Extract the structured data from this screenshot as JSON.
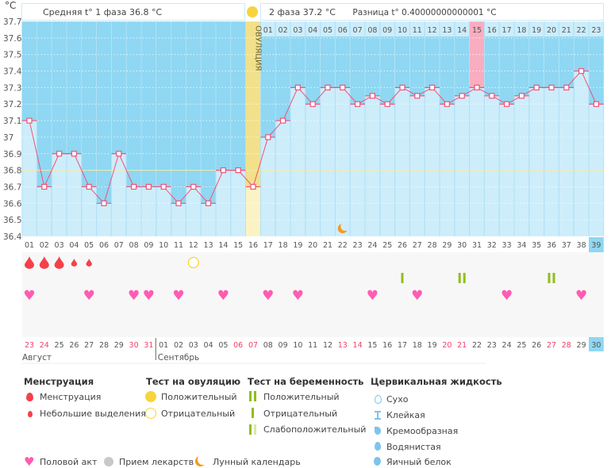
{
  "header": {
    "unit": "°C",
    "phase1_label": "Средняя t° 1 фаза 36.8 °C",
    "phase2_label": "2 фаза 37.2 °C",
    "difference_label": "Разница t° 0.40000000000001 °C",
    "ovulation_label": "ОВУЛЯЦИЯ"
  },
  "chart_data": {
    "type": "line",
    "ylabel": "°C",
    "ylim": [
      36.4,
      37.7
    ],
    "yticks": [
      "37.7",
      "37.6",
      "37.5",
      "37.4",
      "37.3",
      "37.2",
      "37.1",
      "37",
      "36.9",
      "36.8",
      "36.7",
      "36.6",
      "36.5",
      "36.4"
    ],
    "cycle_days": [
      "01",
      "02",
      "03",
      "04",
      "05",
      "06",
      "07",
      "08",
      "09",
      "10",
      "11",
      "12",
      "13",
      "14",
      "15",
      "16",
      "17",
      "18",
      "19",
      "20",
      "21",
      "22",
      "23",
      "24",
      "25",
      "26",
      "27",
      "28",
      "29",
      "30",
      "31",
      "32",
      "33",
      "34",
      "35",
      "36",
      "37",
      "38",
      "39"
    ],
    "post_ovulation_days": [
      "01",
      "02",
      "03",
      "04",
      "05",
      "06",
      "07",
      "08",
      "09",
      "10",
      "11",
      "12",
      "13",
      "14",
      "15",
      "16",
      "17",
      "18",
      "19",
      "20",
      "21",
      "22",
      "23"
    ],
    "temperatures": [
      37.1,
      36.7,
      36.9,
      36.9,
      36.7,
      36.6,
      36.9,
      36.7,
      36.7,
      36.7,
      36.6,
      36.7,
      36.6,
      36.8,
      36.8,
      36.7,
      37.0,
      37.1,
      37.3,
      37.2,
      37.3,
      37.3,
      37.2,
      37.25,
      37.2,
      37.3,
      37.25,
      37.3,
      37.2,
      37.25,
      37.3,
      37.25,
      37.2,
      37.25,
      37.3,
      37.3,
      37.3,
      37.4,
      37.2
    ],
    "phase1_average": 36.8,
    "ovulation_day": 16,
    "highlighted_post_day": 31,
    "current_day": 39,
    "moon_day": 22,
    "grid": true,
    "dates": [
      "23",
      "24",
      "25",
      "26",
      "27",
      "28",
      "29",
      "30",
      "31",
      "01",
      "02",
      "03",
      "04",
      "05",
      "06",
      "07",
      "08",
      "09",
      "10",
      "11",
      "12",
      "13",
      "14",
      "15",
      "16",
      "17",
      "18",
      "19",
      "20",
      "21",
      "22",
      "23",
      "24",
      "25",
      "26",
      "27",
      "28",
      "29",
      "30"
    ],
    "weekend_dates_idx": [
      1,
      2,
      8,
      9,
      15,
      16,
      22,
      23,
      29,
      30,
      36,
      37
    ],
    "months": [
      "Август",
      "Сентябрь"
    ],
    "menstruation": {
      "heavy": [
        1,
        2,
        3
      ],
      "light": [
        4,
        5
      ]
    },
    "ovulation_test_negative": [
      12
    ],
    "pregnancy_test": {
      "negative": [
        26
      ],
      "positive": [
        30,
        36
      ]
    },
    "intercourse": [
      1,
      5,
      8,
      9,
      11,
      14,
      17,
      19,
      24,
      27,
      33,
      38
    ]
  },
  "colors": {
    "phase_bg": "#8fd7f2",
    "bar": "#cdedfb",
    "line": "#f0537a",
    "ovulation": "#f3e08a",
    "highlight": "#f9adc0",
    "weekend": "#f0406a",
    "heart": "#ff5cb3",
    "test": "#8fbf1a"
  },
  "legend": {
    "menstruation": {
      "title": "Менструация",
      "items": [
        "Менструация",
        "Небольшие выделения"
      ]
    },
    "ovulation_test": {
      "title": "Тест на овуляцию",
      "items": [
        "Положительный",
        "Отрицательный"
      ]
    },
    "pregnancy_test": {
      "title": "Тест на беременность",
      "items": [
        "Положительный",
        "Отрицательный",
        "Слабоположительный"
      ]
    },
    "cervical": {
      "title": "Цервикальная жидкость",
      "items": [
        "Сухо",
        "Клейкая",
        "Кремообразная",
        "Водянистая",
        "Яичный белок"
      ]
    },
    "other": [
      "Половой акт",
      "Прием лекарств",
      "Лунный календарь"
    ]
  }
}
